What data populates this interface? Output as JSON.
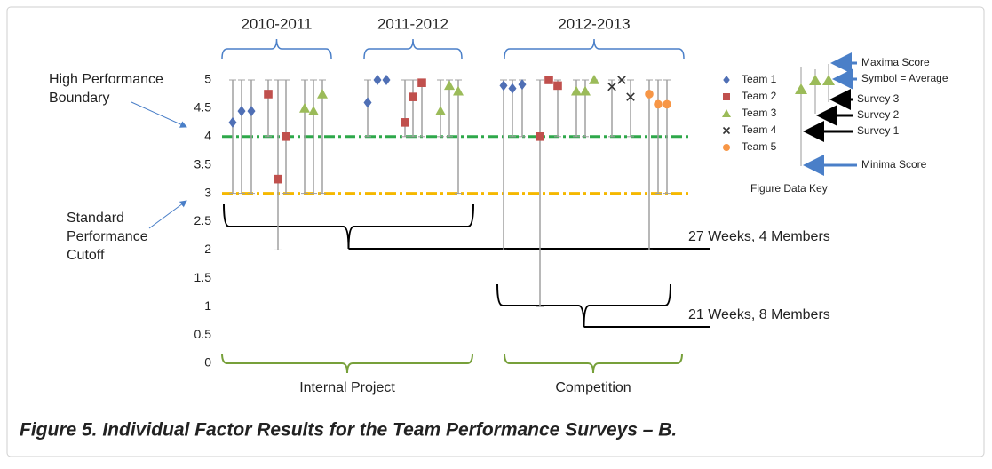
{
  "chart_data": {
    "type": "scatter",
    "ylim": [
      0,
      5
    ],
    "yticks": [
      0,
      0.5,
      1,
      1.5,
      2,
      2.5,
      3,
      3.5,
      4,
      4.5,
      5
    ],
    "xlim": [
      0,
      540
    ],
    "series": [
      {
        "name": "Team 1",
        "color": "#4f6fb5",
        "marker": "diamond",
        "x": [
          22,
          32,
          43,
          174,
          185,
          195,
          327,
          337,
          348
        ],
        "values": [
          4.25,
          4.45,
          4.45,
          4.6,
          5,
          5,
          4.9,
          4.85,
          4.92
        ],
        "low": [
          3,
          3,
          3,
          4,
          5,
          5,
          2,
          4,
          4
        ],
        "high": [
          5,
          5,
          5,
          5,
          5,
          5,
          5,
          5,
          5
        ]
      },
      {
        "name": "Team 2",
        "color": "#c0504d",
        "marker": "square",
        "x": [
          62,
          73,
          82,
          216,
          225,
          235,
          368,
          378,
          388
        ],
        "values": [
          4.75,
          3.25,
          4,
          4.25,
          4.7,
          4.95,
          4,
          5,
          4.9
        ],
        "low": [
          4,
          2,
          3,
          4,
          4,
          4,
          1,
          5,
          4
        ],
        "high": [
          5,
          5,
          5,
          5,
          5,
          5,
          5,
          5,
          5
        ]
      },
      {
        "name": "Team 3",
        "color": "#9bbb59",
        "marker": "triangle",
        "x": [
          103,
          113,
          123,
          256,
          266,
          276,
          409,
          419,
          429
        ],
        "values": [
          4.5,
          4.45,
          4.75,
          4.45,
          4.9,
          4.8,
          4.8,
          4.8,
          5
        ],
        "low": [
          3,
          3,
          3,
          4,
          4,
          3,
          4,
          4,
          5
        ],
        "high": [
          5,
          5,
          5,
          5,
          5,
          5,
          5,
          5,
          5
        ]
      },
      {
        "name": "Team 4",
        "color": "#333333",
        "marker": "x",
        "x": [
          449,
          460,
          470
        ],
        "values": [
          4.88,
          5,
          4.7
        ],
        "low": [
          4,
          5,
          4
        ],
        "high": [
          5,
          5,
          5
        ]
      },
      {
        "name": "Team 5",
        "color": "#f79646",
        "marker": "circle",
        "x": [
          491,
          501,
          511
        ],
        "values": [
          4.75,
          4.57,
          4.57
        ],
        "low": [
          2,
          3,
          3
        ],
        "high": [
          5,
          5,
          5
        ]
      }
    ],
    "reference_lines": [
      {
        "value": 4,
        "color": "#2ea84a",
        "label_lines": [
          "High Performance",
          "Boundary"
        ]
      },
      {
        "value": 3,
        "color": "#f5b800",
        "label_lines": [
          "Standard",
          "Performance",
          "Cutoff"
        ]
      }
    ],
    "period_labels": [
      "2010-2011",
      "2011-2012",
      "2012-2013"
    ],
    "group_labels": [
      "Internal Project",
      "Competition"
    ],
    "duration_labels": [
      "27 Weeks, 4 Members",
      "21 Weeks, 8 Members"
    ],
    "key": {
      "title": "Figure Data Key",
      "maxima": "Maxima Score",
      "average": "Symbol = Average",
      "survey3": "Survey 3",
      "survey2": "Survey 2",
      "survey1": "Survey 1",
      "minima": "Minima Score"
    },
    "caption": "Figure 5. Individual Factor Results for the Team Performance Surveys – B."
  }
}
